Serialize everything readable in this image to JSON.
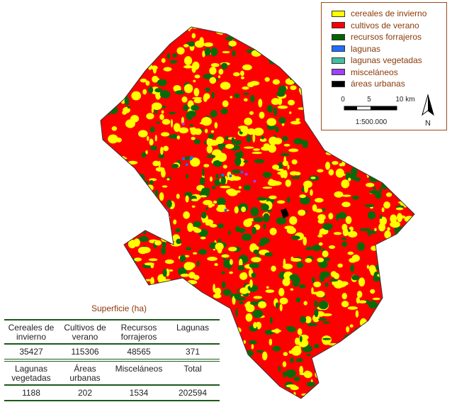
{
  "legend": {
    "items": [
      {
        "label": "cereales de invierno",
        "color": "#ffff00"
      },
      {
        "label": "cultivos de verano",
        "color": "#ff0000"
      },
      {
        "label": "recursos forrajeros",
        "color": "#006400"
      },
      {
        "label": "lagunas",
        "color": "#1e6eff"
      },
      {
        "label": "lagunas vegetadas",
        "color": "#40c0a0"
      },
      {
        "label": "misceláneos",
        "color": "#a040ff"
      },
      {
        "label": "áreas urbanas",
        "color": "#000000"
      }
    ]
  },
  "scale": {
    "ticks": [
      "0",
      "5",
      "10 km"
    ],
    "ratio": "1:500.000",
    "north": "N"
  },
  "table": {
    "title": "Superficie (ha)",
    "rows": [
      [
        "Cereales de invierno",
        "Cultivos de verano",
        "Recursos forrajeros",
        "Lagunas"
      ],
      [
        35427,
        115306,
        48565,
        371
      ],
      [
        "Lagunas vegetadas",
        "Áreas urbanas",
        "Misceláneos",
        "Total"
      ],
      [
        1188,
        202,
        1534,
        202594
      ]
    ]
  }
}
